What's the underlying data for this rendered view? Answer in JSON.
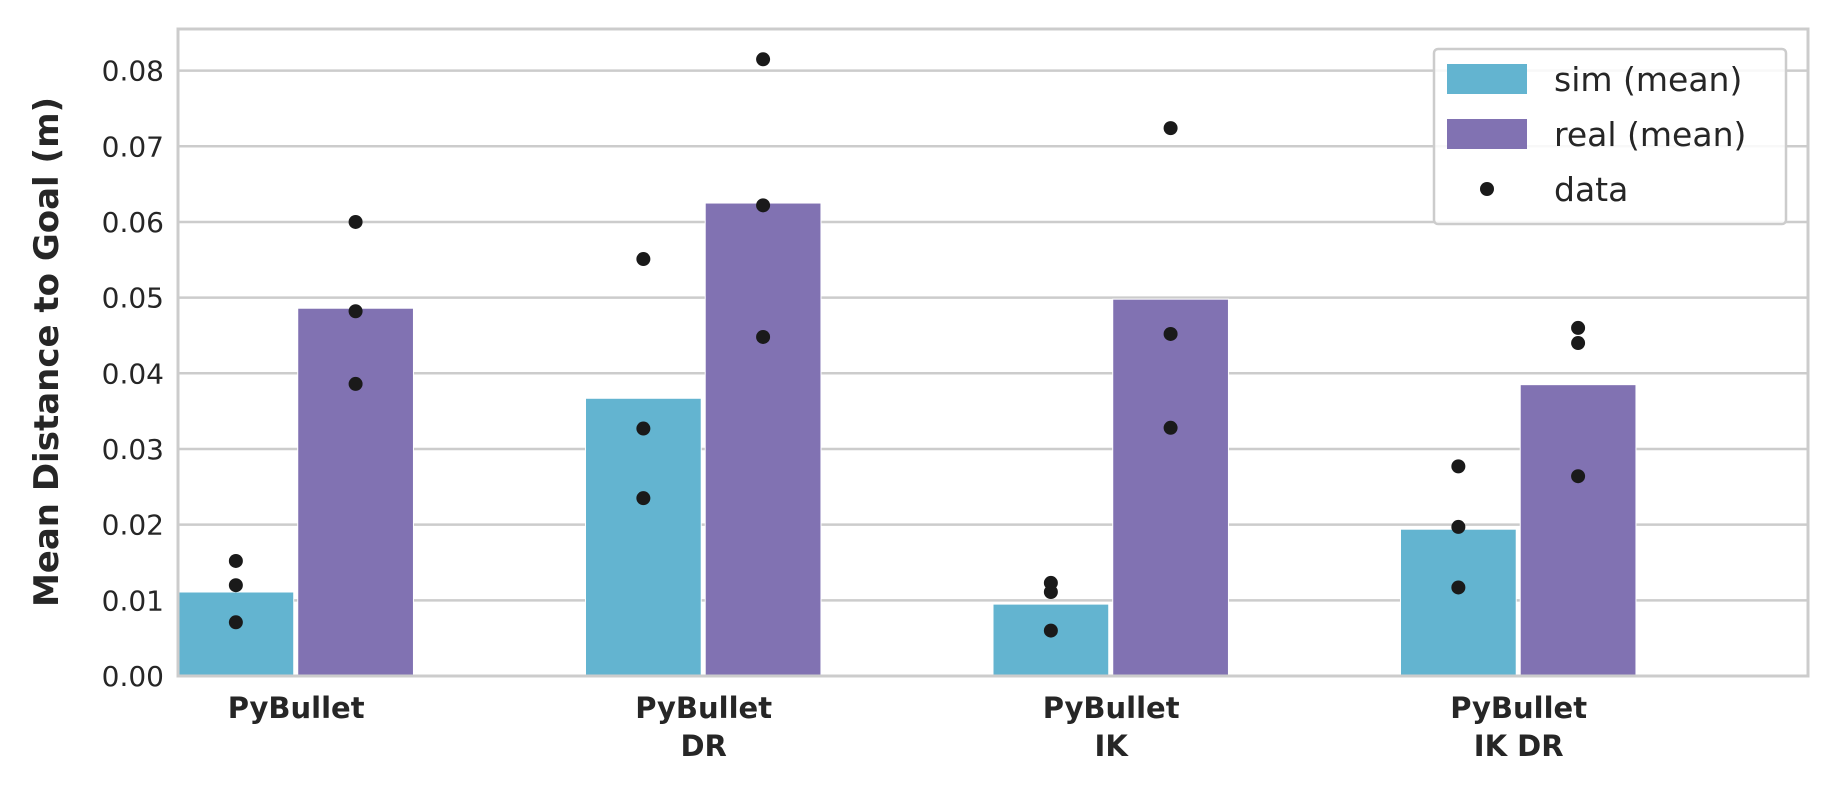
{
  "chart_data": {
    "type": "bar",
    "categories": [
      [
        "PyBullet"
      ],
      [
        "PyBullet",
        "DR"
      ],
      [
        "PyBullet",
        "IK"
      ],
      [
        "PyBullet",
        "IK DR"
      ]
    ],
    "ylabel": "Mean Distance to Goal (m)",
    "xlabel": "",
    "ylim": [
      0,
      0.0855
    ],
    "yticks": [
      "0.00",
      "0.01",
      "0.02",
      "0.03",
      "0.04",
      "0.05",
      "0.06",
      "0.07",
      "0.08"
    ],
    "grid": true,
    "legend_position": "top-right",
    "series": [
      {
        "name": "sim (mean)",
        "color": "#63b4d0",
        "values": [
          0.0111,
          0.0367,
          0.0095,
          0.0194
        ],
        "points": [
          [
            0.0152,
            0.012,
            0.0071
          ],
          [
            0.0551,
            0.0327,
            0.0235
          ],
          [
            0.0123,
            0.0111,
            0.006
          ],
          [
            0.0277,
            0.0197,
            0.0117
          ]
        ]
      },
      {
        "name": "real (mean)",
        "color": "#8172b2",
        "values": [
          0.0486,
          0.0625,
          0.0498,
          0.0385
        ],
        "points": [
          [
            0.06,
            0.0482,
            0.0386
          ],
          [
            0.0815,
            0.0622,
            0.0448
          ],
          [
            0.0724,
            0.0452,
            0.0328
          ],
          [
            0.046,
            0.044,
            0.0264
          ]
        ]
      }
    ],
    "points_legend": "data",
    "points_color": "#1a1a1a"
  }
}
